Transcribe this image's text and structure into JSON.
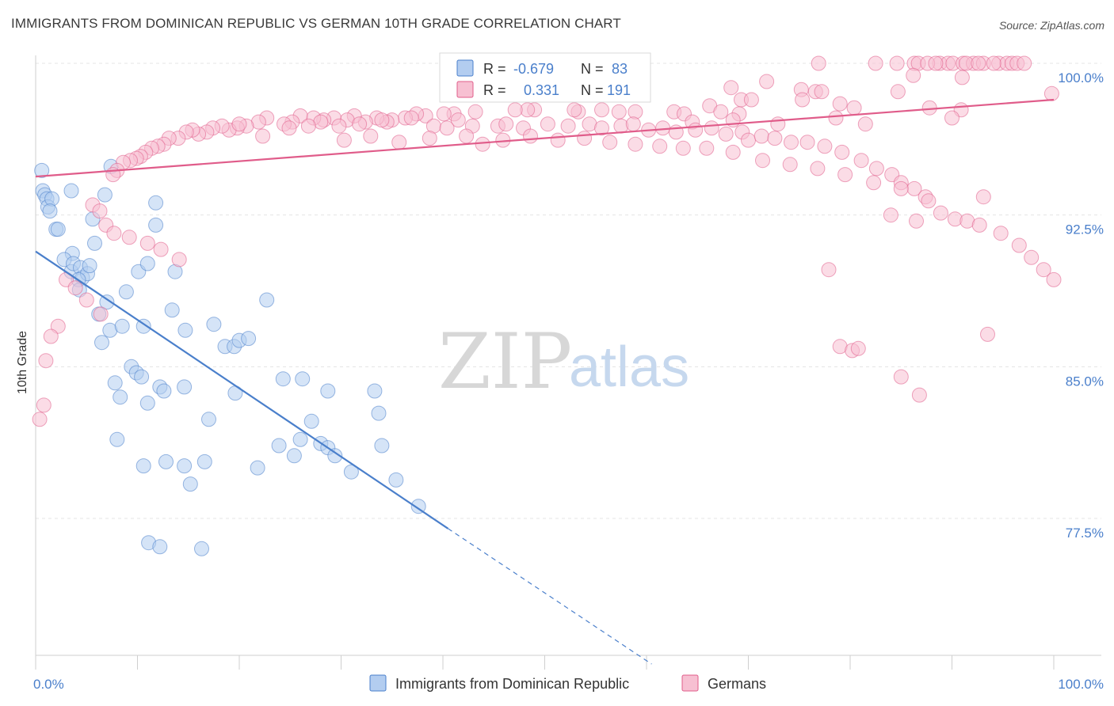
{
  "title": "IMMIGRANTS FROM DOMINICAN REPUBLIC VS GERMAN 10TH GRADE CORRELATION CHART",
  "source": "Source: ZipAtlas.com",
  "watermark": {
    "zip": "ZIP",
    "atlas": "atlas"
  },
  "legend": {
    "r_label": "R =",
    "n_label": "N =",
    "rows": [
      {
        "r": "-0.679",
        "n": "83",
        "color": "#4a7fcb"
      },
      {
        "r": "0.331",
        "n": "191",
        "color": "#e05c8a"
      }
    ]
  },
  "chart_data": {
    "type": "scatter",
    "title": "IMMIGRANTS FROM DOMINICAN REPUBLIC VS GERMAN 10TH GRADE CORRELATION CHART",
    "xlabel": "",
    "ylabel": "10th Grade",
    "xlim": [
      0,
      100
    ],
    "ylim": [
      70,
      100.8
    ],
    "x_tick_labels": [
      "0.0%",
      "100.0%"
    ],
    "y_ticks": [
      {
        "value": 100,
        "label": "100.0%"
      },
      {
        "value": 92.5,
        "label": "92.5%"
      },
      {
        "value": 85,
        "label": "85.0%"
      },
      {
        "value": 77.5,
        "label": "77.5%"
      }
    ],
    "grid": true,
    "legend_position": "bottom",
    "series": [
      {
        "name": "Immigrants from Dominican Republic",
        "color": "#4a7fcb",
        "fill": "#b3cdf0",
        "trend": {
          "x0": 0,
          "y0": 90.7,
          "x1": 40.5,
          "y1": 77.0,
          "dash_to_x": 60.5,
          "dash_to_y": 70.3
        },
        "points": [
          [
            0.6,
            94.7
          ],
          [
            0.7,
            93.7
          ],
          [
            0.9,
            93.5
          ],
          [
            1.1,
            93.3
          ],
          [
            1.2,
            92.9
          ],
          [
            1.6,
            93.3
          ],
          [
            1.4,
            92.7
          ],
          [
            2.0,
            91.8
          ],
          [
            2.2,
            91.8
          ],
          [
            3.5,
            93.7
          ],
          [
            7.4,
            94.9
          ],
          [
            6.8,
            93.5
          ],
          [
            11.8,
            93.1
          ],
          [
            5.6,
            92.3
          ],
          [
            5.8,
            91.1
          ],
          [
            3.6,
            90.6
          ],
          [
            2.8,
            90.3
          ],
          [
            3.5,
            89.7
          ],
          [
            3.7,
            90.1
          ],
          [
            4.4,
            89.9
          ],
          [
            4.6,
            89.4
          ],
          [
            5.1,
            89.6
          ],
          [
            5.3,
            90.0
          ],
          [
            10.1,
            89.7
          ],
          [
            11.0,
            90.1
          ],
          [
            11.8,
            92.0
          ],
          [
            13.7,
            89.7
          ],
          [
            4.2,
            89.3
          ],
          [
            4.3,
            88.8
          ],
          [
            7.0,
            88.2
          ],
          [
            8.9,
            88.7
          ],
          [
            13.4,
            87.8
          ],
          [
            22.7,
            88.3
          ],
          [
            6.2,
            87.6
          ],
          [
            7.3,
            86.8
          ],
          [
            8.5,
            87.0
          ],
          [
            10.6,
            87.0
          ],
          [
            14.7,
            86.8
          ],
          [
            17.5,
            87.1
          ],
          [
            6.5,
            86.2
          ],
          [
            18.6,
            86.0
          ],
          [
            19.5,
            86.0
          ],
          [
            20.0,
            86.3
          ],
          [
            20.9,
            86.4
          ],
          [
            9.4,
            85.0
          ],
          [
            9.9,
            84.7
          ],
          [
            10.4,
            84.5
          ],
          [
            7.8,
            84.2
          ],
          [
            12.2,
            84.0
          ],
          [
            12.6,
            83.8
          ],
          [
            14.6,
            84.0
          ],
          [
            8.3,
            83.5
          ],
          [
            11.0,
            83.2
          ],
          [
            19.6,
            83.7
          ],
          [
            24.3,
            84.4
          ],
          [
            26.2,
            84.4
          ],
          [
            28.7,
            83.8
          ],
          [
            33.3,
            83.8
          ],
          [
            33.7,
            82.7
          ],
          [
            17.0,
            82.4
          ],
          [
            27.1,
            82.3
          ],
          [
            8.0,
            81.4
          ],
          [
            23.9,
            81.1
          ],
          [
            26.0,
            81.4
          ],
          [
            28.0,
            81.2
          ],
          [
            28.7,
            81.0
          ],
          [
            34.0,
            81.1
          ],
          [
            25.4,
            80.6
          ],
          [
            29.4,
            80.6
          ],
          [
            10.6,
            80.1
          ],
          [
            12.8,
            80.3
          ],
          [
            14.6,
            80.1
          ],
          [
            16.6,
            80.3
          ],
          [
            21.8,
            80.0
          ],
          [
            31.0,
            79.8
          ],
          [
            35.4,
            79.4
          ],
          [
            15.2,
            79.2
          ],
          [
            37.6,
            78.1
          ],
          [
            11.1,
            76.3
          ],
          [
            12.2,
            76.1
          ],
          [
            16.3,
            76.0
          ]
        ]
      },
      {
        "name": "Germans",
        "color": "#e05c8a",
        "fill": "#f7c0d2",
        "trend": {
          "x0": 0,
          "y0": 94.4,
          "x1": 100,
          "y1": 98.2
        },
        "points": [
          [
            76.9,
            100.0
          ],
          [
            82.5,
            100.0
          ],
          [
            84.6,
            100.0
          ],
          [
            86.3,
            100.0
          ],
          [
            88.8,
            100.0
          ],
          [
            89.6,
            100.0
          ],
          [
            90.1,
            100.0
          ],
          [
            91.1,
            100.0
          ],
          [
            92.1,
            100.0
          ],
          [
            93.1,
            100.0
          ],
          [
            94.6,
            100.0
          ],
          [
            95.4,
            100.0
          ],
          [
            95.9,
            100.0
          ],
          [
            96.4,
            100.0
          ],
          [
            97.1,
            100.0
          ],
          [
            86.7,
            100.0
          ],
          [
            87.6,
            100.0
          ],
          [
            88.4,
            100.0
          ],
          [
            91.4,
            100.0
          ],
          [
            92.6,
            100.0
          ],
          [
            94.1,
            100.0
          ],
          [
            86.2,
            99.4
          ],
          [
            91.0,
            99.3
          ],
          [
            71.8,
            99.1
          ],
          [
            68.3,
            98.8
          ],
          [
            75.2,
            98.7
          ],
          [
            76.6,
            98.6
          ],
          [
            77.2,
            98.6
          ],
          [
            84.7,
            98.6
          ],
          [
            69.3,
            98.2
          ],
          [
            70.3,
            98.2
          ],
          [
            99.8,
            98.5
          ],
          [
            75.3,
            98.2
          ],
          [
            79.0,
            98.0
          ],
          [
            66.2,
            97.9
          ],
          [
            67.3,
            97.6
          ],
          [
            69.1,
            97.5
          ],
          [
            80.4,
            97.8
          ],
          [
            87.8,
            97.8
          ],
          [
            90.9,
            97.7
          ],
          [
            49.0,
            97.7
          ],
          [
            53.3,
            97.6
          ],
          [
            52.9,
            97.7
          ],
          [
            58.9,
            97.6
          ],
          [
            62.7,
            97.6
          ],
          [
            63.7,
            97.5
          ],
          [
            68.5,
            97.2
          ],
          [
            64.5,
            97.1
          ],
          [
            72.9,
            97.0
          ],
          [
            78.6,
            97.3
          ],
          [
            81.5,
            97.0
          ],
          [
            90.0,
            97.3
          ],
          [
            57.3,
            97.6
          ],
          [
            55.6,
            97.7
          ],
          [
            48.3,
            97.7
          ],
          [
            47.1,
            97.7
          ],
          [
            43.2,
            97.6
          ],
          [
            41.1,
            97.5
          ],
          [
            40.1,
            97.5
          ],
          [
            38.3,
            97.4
          ],
          [
            37.4,
            97.5
          ],
          [
            36.3,
            97.3
          ],
          [
            35.0,
            97.2
          ],
          [
            34.5,
            97.1
          ],
          [
            33.5,
            97.3
          ],
          [
            32.4,
            97.1
          ],
          [
            31.3,
            97.4
          ],
          [
            30.6,
            97.2
          ],
          [
            29.3,
            97.3
          ],
          [
            28.3,
            97.2
          ],
          [
            27.3,
            97.3
          ],
          [
            26.0,
            97.4
          ],
          [
            25.2,
            97.1
          ],
          [
            24.4,
            97.0
          ],
          [
            22.7,
            97.3
          ],
          [
            21.9,
            97.1
          ],
          [
            20.7,
            96.9
          ],
          [
            19.8,
            96.8
          ],
          [
            19.0,
            96.7
          ],
          [
            18.3,
            96.9
          ],
          [
            17.4,
            96.8
          ],
          [
            16.8,
            96.6
          ],
          [
            16.0,
            96.5
          ],
          [
            15.4,
            96.7
          ],
          [
            14.8,
            96.6
          ],
          [
            14.0,
            96.3
          ],
          [
            13.1,
            96.3
          ],
          [
            12.6,
            96.0
          ],
          [
            12.0,
            95.9
          ],
          [
            11.4,
            95.8
          ],
          [
            10.8,
            95.6
          ],
          [
            10.3,
            95.4
          ],
          [
            9.9,
            95.3
          ],
          [
            9.3,
            95.2
          ],
          [
            8.6,
            95.1
          ],
          [
            8.0,
            94.7
          ],
          [
            7.6,
            94.5
          ],
          [
            28.0,
            97.1
          ],
          [
            29.8,
            96.9
          ],
          [
            31.8,
            97.0
          ],
          [
            34.0,
            97.2
          ],
          [
            36.9,
            97.3
          ],
          [
            39.1,
            96.9
          ],
          [
            41.5,
            97.2
          ],
          [
            42.9,
            96.9
          ],
          [
            45.4,
            96.9
          ],
          [
            46.2,
            97.0
          ],
          [
            47.9,
            96.8
          ],
          [
            50.3,
            97.0
          ],
          [
            52.3,
            96.9
          ],
          [
            54.4,
            97.0
          ],
          [
            55.6,
            96.8
          ],
          [
            57.5,
            96.9
          ],
          [
            58.7,
            97.0
          ],
          [
            60.2,
            96.7
          ],
          [
            61.6,
            96.8
          ],
          [
            62.9,
            96.6
          ],
          [
            64.8,
            96.7
          ],
          [
            66.4,
            96.8
          ],
          [
            67.8,
            96.5
          ],
          [
            69.4,
            96.6
          ],
          [
            70.0,
            96.2
          ],
          [
            71.3,
            96.4
          ],
          [
            72.6,
            96.3
          ],
          [
            74.2,
            96.1
          ],
          [
            75.8,
            96.1
          ],
          [
            77.5,
            95.9
          ],
          [
            79.2,
            95.6
          ],
          [
            81.1,
            95.2
          ],
          [
            82.6,
            94.8
          ],
          [
            84.1,
            94.5
          ],
          [
            85.0,
            94.1
          ],
          [
            86.3,
            93.8
          ],
          [
            87.4,
            93.4
          ],
          [
            88.9,
            92.6
          ],
          [
            90.3,
            92.3
          ],
          [
            91.5,
            92.2
          ],
          [
            92.7,
            92.0
          ],
          [
            94.8,
            91.6
          ],
          [
            96.6,
            91.0
          ],
          [
            97.8,
            90.4
          ],
          [
            99.0,
            89.8
          ],
          [
            100.0,
            89.3
          ],
          [
            20.0,
            97.0
          ],
          [
            22.3,
            96.4
          ],
          [
            24.9,
            96.8
          ],
          [
            26.8,
            96.9
          ],
          [
            30.3,
            96.2
          ],
          [
            32.9,
            96.4
          ],
          [
            35.7,
            96.1
          ],
          [
            38.7,
            96.3
          ],
          [
            40.4,
            96.8
          ],
          [
            42.3,
            96.4
          ],
          [
            43.9,
            96.0
          ],
          [
            45.9,
            96.2
          ],
          [
            48.6,
            96.4
          ],
          [
            51.3,
            96.2
          ],
          [
            53.9,
            96.3
          ],
          [
            56.4,
            96.1
          ],
          [
            58.9,
            96.0
          ],
          [
            61.3,
            95.9
          ],
          [
            63.6,
            95.8
          ],
          [
            65.9,
            95.8
          ],
          [
            68.5,
            95.6
          ],
          [
            71.4,
            95.2
          ],
          [
            74.1,
            95.0
          ],
          [
            76.8,
            94.8
          ],
          [
            79.5,
            94.5
          ],
          [
            82.3,
            94.1
          ],
          [
            85.0,
            93.8
          ],
          [
            87.7,
            93.2
          ],
          [
            5.6,
            93.0
          ],
          [
            6.3,
            92.7
          ],
          [
            6.9,
            92.0
          ],
          [
            7.7,
            91.6
          ],
          [
            9.2,
            91.4
          ],
          [
            11.0,
            91.1
          ],
          [
            12.3,
            90.8
          ],
          [
            14.1,
            90.3
          ],
          [
            3.0,
            89.3
          ],
          [
            3.9,
            88.9
          ],
          [
            5.0,
            88.3
          ],
          [
            6.4,
            87.6
          ],
          [
            2.2,
            87.0
          ],
          [
            1.5,
            86.5
          ],
          [
            1.0,
            85.3
          ],
          [
            0.8,
            83.1
          ],
          [
            0.4,
            82.4
          ],
          [
            79.0,
            86.0
          ],
          [
            80.2,
            85.8
          ],
          [
            80.8,
            85.9
          ],
          [
            85.0,
            84.5
          ],
          [
            86.8,
            83.6
          ],
          [
            93.5,
            86.6
          ],
          [
            77.9,
            89.8
          ],
          [
            93.1,
            93.4
          ],
          [
            84.0,
            92.5
          ],
          [
            86.5,
            92.2
          ]
        ]
      }
    ]
  },
  "bottom_legend": [
    {
      "label": "Immigrants from Dominican Republic",
      "color": "#4a7fcb",
      "fill": "#b3cdf0"
    },
    {
      "label": "Germans",
      "color": "#e05c8a",
      "fill": "#f7c0d2"
    }
  ]
}
